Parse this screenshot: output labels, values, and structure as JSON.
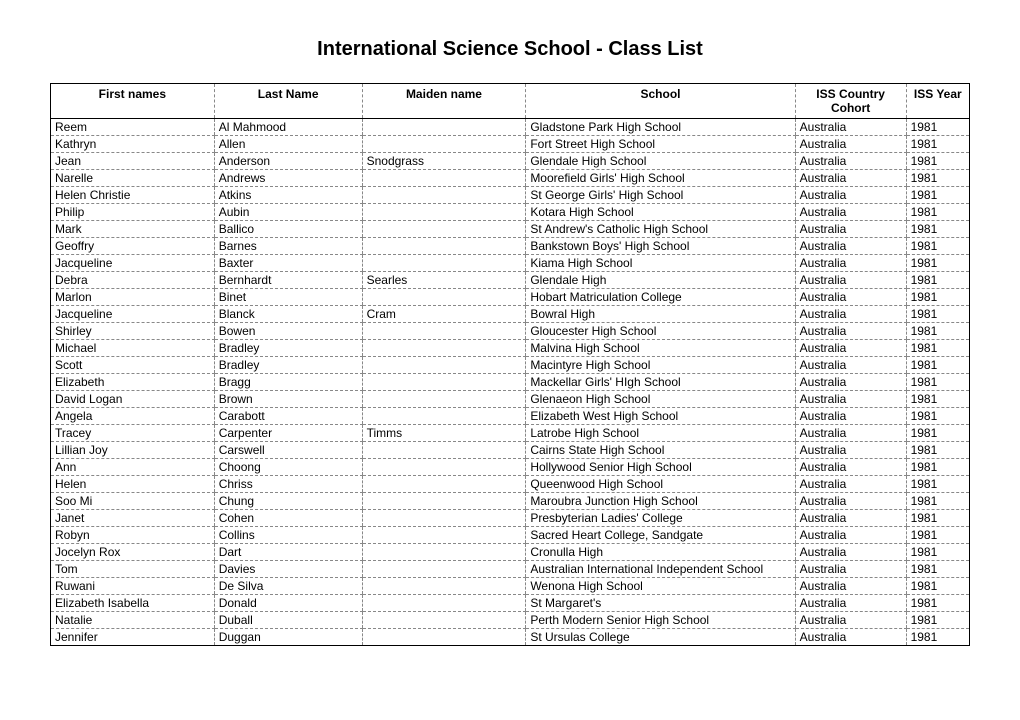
{
  "title": "International Science School - Class List",
  "table": {
    "columns": [
      "First names",
      "Last Name",
      "Maiden name",
      "School",
      "ISS Country Cohort",
      "ISS Year"
    ],
    "column_widths": [
      "155px",
      "140px",
      "155px",
      "255px",
      "105px",
      "60px"
    ],
    "header_align": [
      "center",
      "center",
      "center",
      "center",
      "center",
      "center"
    ],
    "cell_align": [
      "left",
      "left",
      "left",
      "left",
      "left",
      "left"
    ],
    "border_color": "#000000",
    "dashed_color": "#888888",
    "font_size": 12,
    "header_font_weight": "bold",
    "rows": [
      [
        "Reem",
        "Al Mahmood",
        "",
        "Gladstone Park High School",
        "Australia",
        "1981"
      ],
      [
        "Kathryn",
        "Allen",
        "",
        "Fort Street High School",
        "Australia",
        "1981"
      ],
      [
        "Jean",
        "Anderson",
        "Snodgrass",
        "Glendale High School",
        "Australia",
        "1981"
      ],
      [
        "Narelle",
        "Andrews",
        "",
        "Moorefield Girls' High School",
        "Australia",
        "1981"
      ],
      [
        "Helen Christie",
        "Atkins",
        "",
        "St George Girls' High School",
        "Australia",
        "1981"
      ],
      [
        "Philip",
        "Aubin",
        "",
        "Kotara High School",
        "Australia",
        "1981"
      ],
      [
        "Mark",
        "Ballico",
        "",
        "St Andrew's Catholic High School",
        "Australia",
        "1981"
      ],
      [
        "Geoffry",
        "Barnes",
        "",
        "Bankstown Boys' High School",
        "Australia",
        "1981"
      ],
      [
        "Jacqueline",
        "Baxter",
        "",
        "Kiama High School",
        "Australia",
        "1981"
      ],
      [
        "Debra",
        "Bernhardt",
        "Searles",
        "Glendale High",
        "Australia",
        "1981"
      ],
      [
        "Marlon",
        "Binet",
        "",
        "Hobart Matriculation College",
        "Australia",
        "1981"
      ],
      [
        "Jacqueline",
        "Blanck",
        "Cram",
        "Bowral High",
        "Australia",
        "1981"
      ],
      [
        "Shirley",
        "Bowen",
        "",
        "Gloucester High School",
        "Australia",
        "1981"
      ],
      [
        "Michael",
        "Bradley",
        "",
        "Malvina High School",
        "Australia",
        "1981"
      ],
      [
        "Scott",
        "Bradley",
        "",
        "Macintyre High School",
        "Australia",
        "1981"
      ],
      [
        "Elizabeth",
        "Bragg",
        "",
        "Mackellar Girls' HIgh School",
        "Australia",
        "1981"
      ],
      [
        "David Logan",
        "Brown",
        "",
        "Glenaeon High School",
        "Australia",
        "1981"
      ],
      [
        "Angela",
        "Carabott",
        "",
        "Elizabeth West High School",
        "Australia",
        "1981"
      ],
      [
        "Tracey",
        "Carpenter",
        "Timms",
        "Latrobe High School",
        "Australia",
        "1981"
      ],
      [
        "Lillian Joy",
        "Carswell",
        "",
        "Cairns State High School",
        "Australia",
        "1981"
      ],
      [
        "Ann",
        "Choong",
        "",
        "Hollywood Senior High School",
        "Australia",
        "1981"
      ],
      [
        "Helen",
        "Chriss",
        "",
        "Queenwood High School",
        "Australia",
        "1981"
      ],
      [
        "Soo Mi",
        "Chung",
        "",
        "Maroubra Junction High School",
        "Australia",
        "1981"
      ],
      [
        "Janet",
        "Cohen",
        "",
        "Presbyterian Ladies' College",
        "Australia",
        "1981"
      ],
      [
        "Robyn",
        "Collins",
        "",
        "Sacred Heart College, Sandgate",
        "Australia",
        "1981"
      ],
      [
        "Jocelyn Rox",
        "Dart",
        "",
        "Cronulla High",
        "Australia",
        "1981"
      ],
      [
        "Tom",
        "Davies",
        "",
        "Australian International Independent School",
        "Australia",
        "1981"
      ],
      [
        "Ruwani",
        "De Silva",
        "",
        "Wenona High School",
        "Australia",
        "1981"
      ],
      [
        "Elizabeth Isabella",
        "Donald",
        "",
        "St Margaret's",
        "Australia",
        "1981"
      ],
      [
        "Natalie",
        "Duball",
        "",
        "Perth Modern Senior High School",
        "Australia",
        "1981"
      ],
      [
        "Jennifer",
        "Duggan",
        "",
        "St Ursulas College",
        "Australia",
        "1981"
      ]
    ]
  },
  "colors": {
    "background": "#ffffff",
    "text": "#000000"
  }
}
